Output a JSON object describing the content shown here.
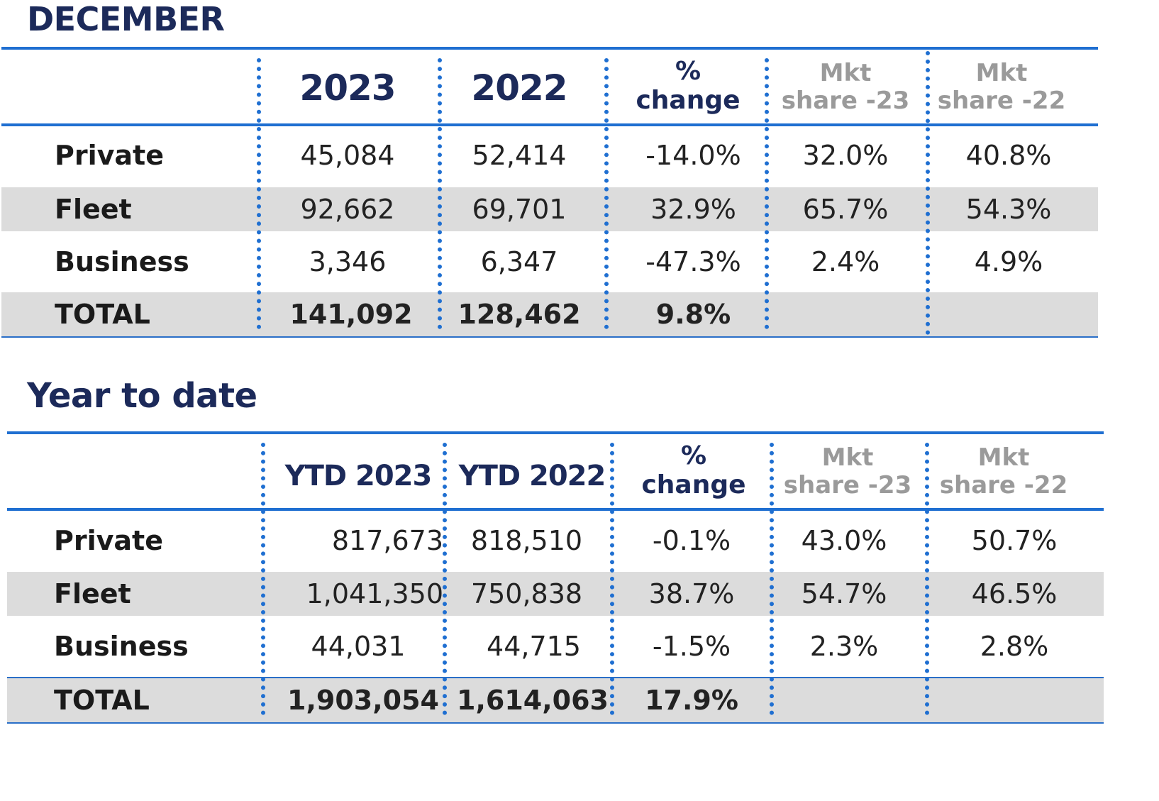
{
  "december": {
    "title": "DECEMBER",
    "headers": {
      "col1": "2023",
      "col2": "2022",
      "change_line1": "%",
      "change_line2": "change",
      "mkt23_line1": "Mkt",
      "mkt23_line2": "share -23",
      "mkt22_line1": "Mkt",
      "mkt22_line2": "share -22"
    },
    "rows": [
      {
        "label": "Private",
        "v2023": "45,084",
        "v2022": "52,414",
        "change": "-14.0%",
        "mkt23": "32.0%",
        "mkt22": "40.8%"
      },
      {
        "label": "Fleet",
        "v2023": "92,662",
        "v2022": "69,701",
        "change": "32.9%",
        "mkt23": "65.7%",
        "mkt22": "54.3%"
      },
      {
        "label": "Business",
        "v2023": "3,346",
        "v2022": "6,347",
        "change": "-47.3%",
        "mkt23": "2.4%",
        "mkt22": "4.9%"
      },
      {
        "label": "TOTAL",
        "v2023": "141,092",
        "v2022": "128,462",
        "change": "9.8%",
        "mkt23": "",
        "mkt22": ""
      }
    ]
  },
  "ytd": {
    "title": "Year to date",
    "headers": {
      "col1": "YTD 2023",
      "col2": "YTD 2022",
      "change_line1": "%",
      "change_line2": "change",
      "mkt23_line1": "Mkt",
      "mkt23_line2": "share -23",
      "mkt22_line1": "Mkt",
      "mkt22_line2": "share -22"
    },
    "rows": [
      {
        "label": "Private",
        "v2023": "817,673",
        "v2022": "818,510",
        "change": "-0.1%",
        "mkt23": "43.0%",
        "mkt22": "50.7%"
      },
      {
        "label": "Fleet",
        "v2023": "1,041,350",
        "v2022": "750,838",
        "change": "38.7%",
        "mkt23": "54.7%",
        "mkt22": "46.5%"
      },
      {
        "label": "Business",
        "v2023": "44,031",
        "v2022": "44,715",
        "change": "-1.5%",
        "mkt23": "2.3%",
        "mkt22": "2.8%"
      },
      {
        "label": "TOTAL",
        "v2023": "1,903,054",
        "v2022": "1,614,063",
        "change": "17.9%",
        "mkt23": "",
        "mkt22": ""
      }
    ]
  },
  "colors": {
    "title_navy": "#1c2a5a",
    "rule_blue": "#1f6fd1",
    "row_shade": "#dcdcdc",
    "muted_header": "#9a9a9a"
  }
}
